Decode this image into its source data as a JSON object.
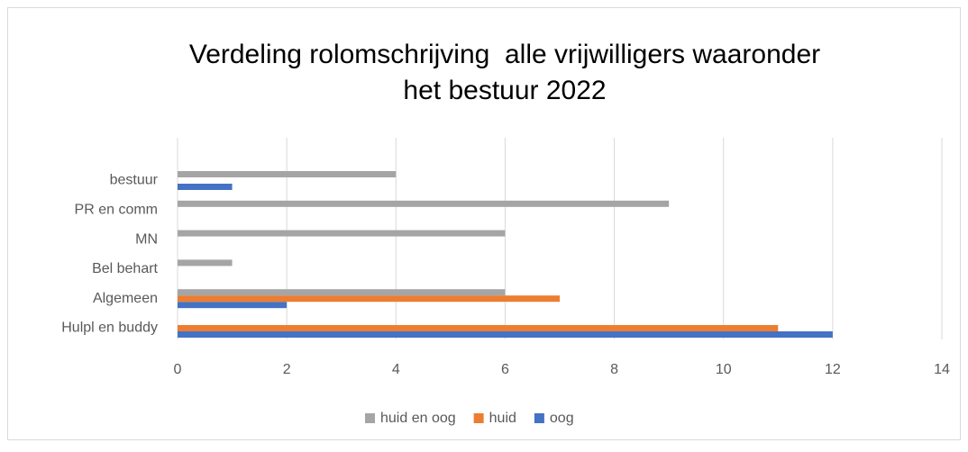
{
  "chart_data": {
    "type": "bar",
    "orientation": "horizontal",
    "title": [
      "Verdeling rolomschrijving  alle vrijwilligers waaronder",
      "het bestuur 2022"
    ],
    "categories": [
      "Hulpl en buddy",
      "Algemeen",
      "Bel behart",
      "MN",
      "PR en comm",
      "bestuur"
    ],
    "series": [
      {
        "name": "oog",
        "color": "#4472c4",
        "values": [
          12,
          2,
          0,
          0,
          0,
          1
        ]
      },
      {
        "name": "huid",
        "color": "#ed7d31",
        "values": [
          11,
          7,
          0,
          0,
          0,
          0
        ]
      },
      {
        "name": "huid en oog",
        "color": "#a5a5a5",
        "values": [
          0,
          6,
          1,
          6,
          9,
          4
        ]
      }
    ],
    "xlim": [
      0,
      14
    ],
    "xticks": [
      0,
      2,
      4,
      6,
      8,
      10,
      12,
      14
    ],
    "grid": true,
    "legend": "bottom"
  }
}
